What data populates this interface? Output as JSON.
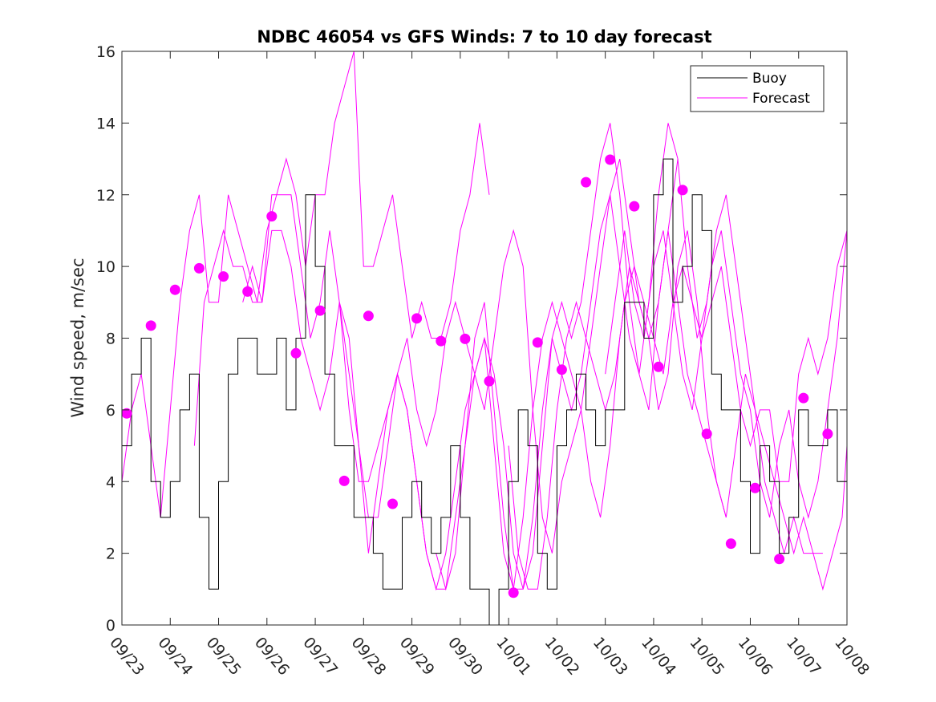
{
  "chart_data": {
    "type": "line",
    "title": "NDBC 46054 vs GFS Winds: 7 to 10 day forecast",
    "xlabel": "",
    "ylabel": "Wind speed, m/sec",
    "ylim": [
      0,
      16
    ],
    "xlim": [
      0,
      15
    ],
    "ytick_values": [
      0,
      2,
      4,
      6,
      8,
      10,
      12,
      14,
      16
    ],
    "ytick_labels": [
      "0",
      "2",
      "4",
      "6",
      "8",
      "10",
      "12",
      "14",
      "16"
    ],
    "xtick_values": [
      0,
      1,
      2,
      3,
      4,
      5,
      6,
      7,
      8,
      9,
      10,
      11,
      12,
      13,
      14,
      15
    ],
    "xtick_labels": [
      "09/23",
      "09/24",
      "09/25",
      "09/26",
      "09/27",
      "09/28",
      "09/29",
      "09/30",
      "10/01",
      "10/02",
      "10/03",
      "10/04",
      "10/05",
      "10/06",
      "10/07",
      "10/08"
    ],
    "legend": {
      "position": "top-right",
      "entries": [
        {
          "label": "Buoy",
          "color": "#000000"
        },
        {
          "label": "Forecast",
          "color": "#ff00ff"
        }
      ]
    },
    "buoy": {
      "name": "Buoy",
      "color": "#000000",
      "x": [
        0,
        0.2,
        0.4,
        0.6,
        0.8,
        1.0,
        1.2,
        1.4,
        1.6,
        1.8,
        2.0,
        2.2,
        2.4,
        2.6,
        2.8,
        3.0,
        3.2,
        3.4,
        3.6,
        3.8,
        4.0,
        4.2,
        4.4,
        4.6,
        4.8,
        5.0,
        5.2,
        5.4,
        5.6,
        5.8,
        6.0,
        6.2,
        6.4,
        6.6,
        6.8,
        7.0,
        7.2,
        7.4,
        7.6,
        7.8,
        8.0,
        8.2,
        8.4,
        8.6,
        8.8,
        9.0,
        9.2,
        9.4,
        9.6,
        9.8,
        10.0,
        10.2,
        10.4,
        10.6,
        10.8,
        11.0,
        11.2,
        11.4,
        11.6,
        11.8,
        12.0,
        12.2,
        12.4,
        12.6,
        12.8,
        13.0,
        13.2,
        13.4,
        13.6,
        13.8,
        14.0,
        14.2,
        14.4,
        14.6,
        14.8,
        15.0
      ],
      "y": [
        5,
        7,
        8,
        4,
        3,
        4,
        6,
        7,
        3,
        1,
        4,
        7,
        8,
        8,
        7,
        7,
        8,
        6,
        8,
        12,
        10,
        7,
        5,
        5,
        3,
        3,
        2,
        1,
        1,
        3,
        4,
        3,
        2,
        3,
        5,
        3,
        1,
        1,
        0,
        1,
        4,
        6,
        5,
        2,
        1,
        5,
        6,
        7,
        6,
        5,
        6,
        6,
        9,
        9,
        8,
        12,
        13,
        9,
        10,
        12,
        11,
        7,
        6,
        6,
        4,
        2,
        5,
        4,
        2,
        3,
        6,
        5,
        5,
        6,
        4,
        4
      ]
    },
    "forecast_series": [
      {
        "name": "Forecast 1",
        "color": "#ff00ff",
        "x": [
          0,
          0.2,
          0.4,
          0.6,
          0.8,
          1.0,
          1.2,
          1.4,
          1.6,
          1.8,
          2.0,
          2.2,
          2.4,
          2.6,
          2.8,
          3.0,
          3.2,
          3.4,
          3.6,
          3.8,
          4.0,
          4.2,
          4.4,
          4.6,
          4.8,
          5.0,
          5.2,
          5.4,
          5.6,
          5.8,
          6.0,
          6.2,
          6.4,
          6.6,
          6.8,
          7.0,
          7.2,
          7.4,
          7.6
        ],
        "y": [
          4,
          6,
          7,
          5,
          3,
          6,
          9,
          11,
          12,
          9,
          9,
          12,
          11,
          10,
          9,
          11,
          12,
          13,
          12,
          10,
          12,
          12,
          14,
          15,
          16,
          10,
          10,
          11,
          12,
          10,
          8,
          9,
          8,
          8,
          9,
          11,
          12,
          14,
          12
        ]
      },
      {
        "name": "Forecast 2",
        "color": "#ff00ff",
        "x": [
          1.5,
          1.7,
          1.9,
          2.1,
          2.3,
          2.5,
          2.7,
          2.9,
          3.1,
          3.3,
          3.5,
          3.7,
          3.9,
          4.1,
          4.3,
          4.5,
          4.7,
          4.9,
          5.1,
          5.3,
          5.5,
          5.7,
          5.9,
          6.1,
          6.3,
          6.5,
          6.7,
          6.9,
          7.1,
          7.3,
          7.5,
          7.7,
          7.9,
          8.1,
          8.3,
          8.5,
          8.7,
          8.9,
          9.1,
          9.3,
          9.5,
          9.7,
          9.9,
          10.1,
          10.3,
          10.5,
          10.7,
          10.9,
          11.1,
          11.3,
          11.5
        ],
        "y": [
          5,
          9,
          10,
          11,
          10,
          10,
          9,
          9,
          12,
          12,
          12,
          10,
          8,
          9,
          11,
          9,
          6,
          4,
          4,
          5,
          6,
          7,
          8,
          6,
          5,
          6,
          8,
          9,
          8,
          7,
          6,
          8,
          10,
          11,
          10,
          6,
          3,
          2,
          4,
          5,
          6,
          8,
          10,
          12,
          13,
          11,
          9,
          8,
          9,
          11,
          13
        ]
      },
      {
        "name": "Forecast 3",
        "color": "#ff00ff",
        "x": [
          2.5,
          2.7,
          2.9,
          3.1,
          3.3,
          3.5,
          3.7,
          3.9,
          4.1,
          4.3,
          4.5,
          4.7,
          4.9,
          5.1,
          5.3,
          5.5,
          5.7,
          5.9,
          6.1,
          6.3,
          6.5,
          6.7,
          6.9,
          7.1,
          7.3,
          7.5,
          7.7,
          7.9,
          8.1,
          8.3,
          8.5,
          8.7,
          8.9,
          9.1,
          9.3,
          9.5,
          9.7,
          9.9,
          10.1,
          10.3,
          10.5,
          10.7,
          10.9,
          11.1,
          11.3,
          11.5,
          11.7,
          11.9,
          12.1,
          12.3,
          12.5
        ],
        "y": [
          9,
          10,
          9,
          11,
          11,
          10,
          8,
          7,
          6,
          7,
          9,
          8,
          5,
          2,
          4,
          6,
          7,
          6,
          4,
          2,
          1,
          2,
          4,
          6,
          7,
          8,
          5,
          2,
          1,
          3,
          6,
          8,
          9,
          8,
          7,
          6,
          4,
          3,
          5,
          8,
          10,
          9,
          8,
          6,
          7,
          10,
          11,
          9,
          6,
          4,
          3
        ]
      },
      {
        "name": "Forecast 4",
        "color": "#ff00ff",
        "x": [
          4.5,
          4.7,
          4.9,
          5.1,
          5.3,
          5.5,
          5.7,
          5.9,
          6.1,
          6.3,
          6.5,
          6.7,
          6.9,
          7.1,
          7.3,
          7.5,
          7.7,
          7.9,
          8.1,
          8.3,
          8.5,
          8.7,
          8.9,
          9.1,
          9.3,
          9.5,
          9.7,
          9.9,
          10.1,
          10.3,
          10.5,
          10.7,
          10.9,
          11.1,
          11.3,
          11.5,
          11.7,
          11.9,
          12.1,
          12.3,
          12.5,
          12.7,
          12.9,
          13.1,
          13.3,
          13.5,
          13.7,
          13.9,
          14.1,
          14.3,
          14.5
        ],
        "y": [
          9,
          7,
          5,
          3,
          3,
          5,
          7,
          6,
          4,
          2,
          1,
          1,
          3,
          5,
          7,
          8,
          7,
          5,
          2,
          1,
          3,
          6,
          8,
          7,
          6,
          7,
          9,
          11,
          12,
          10,
          8,
          7,
          6,
          9,
          11,
          9,
          7,
          6,
          5,
          4,
          3,
          5,
          7,
          6,
          5,
          4,
          3,
          2,
          3,
          2,
          2
        ]
      },
      {
        "name": "Forecast 5",
        "color": "#ff00ff",
        "x": [
          6.5,
          6.7,
          6.9,
          7.1,
          7.3,
          7.5,
          7.7,
          7.9,
          8.1,
          8.3,
          8.5,
          8.7,
          8.9,
          9.1,
          9.3,
          9.5,
          9.7,
          9.9,
          10.1,
          10.3,
          10.5,
          10.7,
          10.9,
          11.1,
          11.3,
          11.5,
          11.7,
          11.9,
          12.1,
          12.3,
          12.5,
          12.7,
          12.9,
          13.1,
          13.3,
          13.5,
          13.7,
          13.9,
          14.1,
          14.3,
          14.5,
          14.7,
          14.9,
          15.0
        ],
        "y": [
          2,
          1,
          2,
          5,
          8,
          9,
          6,
          3,
          1,
          1,
          2,
          5,
          8,
          9,
          8,
          9,
          11,
          13,
          14,
          12,
          9,
          7,
          9,
          12,
          14,
          13,
          10,
          8,
          9,
          11,
          12,
          10,
          8,
          6,
          4,
          3,
          2,
          3,
          2,
          2,
          1,
          2,
          3,
          5
        ]
      },
      {
        "name": "Forecast 6",
        "color": "#ff00ff",
        "x": [
          8.0,
          8.2,
          8.4,
          8.6,
          8.8,
          9.0,
          9.2,
          9.4,
          9.6,
          9.8,
          10.0,
          10.2,
          10.4,
          10.6,
          10.8,
          11.0,
          11.2,
          11.4,
          11.6,
          11.8,
          12.0,
          12.2,
          12.4,
          12.6,
          12.8,
          13.0,
          13.2,
          13.4,
          13.6,
          13.8,
          14.0,
          14.2,
          14.4,
          14.6,
          14.8,
          15.0
        ],
        "y": [
          5,
          2,
          1,
          1,
          3,
          6,
          8,
          9,
          8,
          7,
          6,
          7,
          9,
          10,
          9,
          8,
          7,
          9,
          10,
          9,
          8,
          9,
          10,
          8,
          6,
          5,
          6,
          6,
          4,
          4,
          7,
          8,
          7,
          8,
          10,
          11
        ]
      },
      {
        "name": "Forecast 7",
        "color": "#ff00ff",
        "x": [
          10.0,
          10.2,
          10.4,
          10.6,
          10.8,
          11.0,
          11.2,
          11.4,
          11.6,
          11.8,
          12.0,
          12.2,
          12.4,
          12.6,
          12.8,
          13.0,
          13.2,
          13.4,
          13.6,
          13.8,
          14.0,
          14.2,
          14.4,
          14.6,
          14.8,
          15.0
        ],
        "y": [
          7,
          9,
          11,
          9,
          8,
          10,
          11,
          9,
          7,
          6,
          8,
          10,
          11,
          9,
          7,
          6,
          4,
          3,
          5,
          6,
          4,
          3,
          4,
          6,
          8,
          11
        ]
      }
    ],
    "forecast_points": {
      "name": "Forecast points",
      "color": "#ff00ff",
      "x": [
        0.1,
        0.6,
        1.1,
        1.6,
        2.1,
        2.6,
        3.1,
        3.6,
        4.1,
        4.6,
        5.1,
        5.6,
        6.1,
        6.6,
        7.1,
        7.6,
        8.1,
        8.6,
        9.1,
        9.6,
        10.1,
        10.6,
        11.1,
        11.6,
        12.1,
        12.6,
        13.1,
        13.6,
        14.1,
        14.6
      ],
      "y": [
        5.9,
        8.35,
        9.35,
        9.95,
        9.72,
        9.3,
        11.4,
        7.58,
        8.77,
        4.02,
        8.62,
        3.38,
        8.55,
        7.92,
        7.98,
        6.8,
        0.9,
        7.88,
        7.12,
        12.35,
        12.98,
        11.68,
        7.2,
        12.13,
        5.33,
        2.27,
        3.82,
        1.84,
        6.33,
        5.33
      ]
    }
  }
}
